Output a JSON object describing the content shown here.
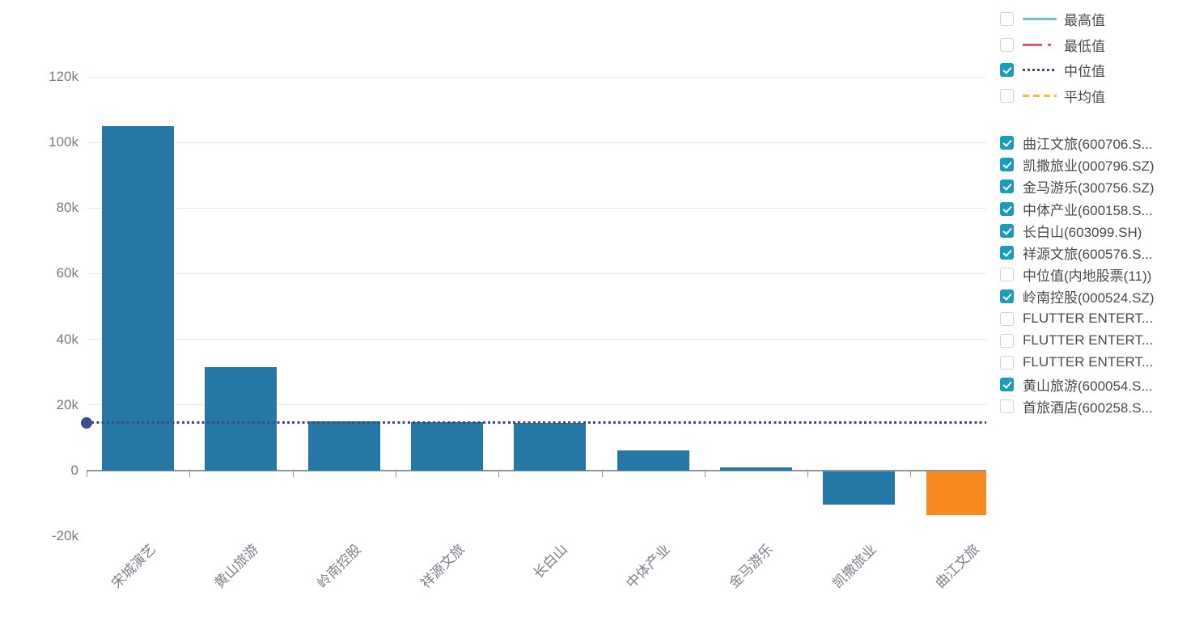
{
  "chart_data": {
    "type": "bar",
    "title": "",
    "xlabel": "",
    "ylabel": "",
    "categories": [
      "宋城演艺",
      "黄山旅游",
      "岭南控股",
      "祥源文旅",
      "长白山",
      "中体产业",
      "金马游乐",
      "凯撒旅业",
      "曲江文旅"
    ],
    "values": [
      105000,
      31500,
      15000,
      14700,
      14600,
      6200,
      1000,
      -10200,
      -13400
    ],
    "bar_colors": [
      "#2577a6",
      "#2577a6",
      "#2577a6",
      "#2577a6",
      "#2577a6",
      "#2577a6",
      "#2577a6",
      "#2577a6",
      "#f68a1f"
    ],
    "ylim": [
      -20000,
      120000
    ],
    "yticks": [
      {
        "value": 120000,
        "label": "120k"
      },
      {
        "value": 100000,
        "label": "100k"
      },
      {
        "value": 80000,
        "label": "80k"
      },
      {
        "value": 60000,
        "label": "60k"
      },
      {
        "value": 40000,
        "label": "40k"
      },
      {
        "value": 20000,
        "label": "20k"
      },
      {
        "value": 0,
        "label": "0"
      },
      {
        "value": -20000,
        "label": "-20k"
      }
    ],
    "grid": true,
    "legend_position": "right",
    "median_line": {
      "value": 14600,
      "color": "#3b4a8f",
      "style": "dotted"
    }
  },
  "legend": {
    "stat_lines": [
      {
        "label": "最高值",
        "checked": false,
        "line_style": "solid",
        "color": "#67c6c0"
      },
      {
        "label": "最低值",
        "checked": false,
        "line_style": "dash-dot",
        "color": "#e2605b"
      },
      {
        "label": "中位值",
        "checked": true,
        "line_style": "dotted",
        "color": "#3b4a8f"
      },
      {
        "label": "平均值",
        "checked": false,
        "line_style": "dashed",
        "color": "#eec43b"
      }
    ],
    "series_items": [
      {
        "label": "曲江文旅(600706.S...",
        "checked": true
      },
      {
        "label": "凯撒旅业(000796.SZ)",
        "checked": true
      },
      {
        "label": "金马游乐(300756.SZ)",
        "checked": true
      },
      {
        "label": "中体产业(600158.S...",
        "checked": true
      },
      {
        "label": "长白山(603099.SH)",
        "checked": true
      },
      {
        "label": "祥源文旅(600576.S...",
        "checked": true
      },
      {
        "label": "中位值(内地股票(11))",
        "checked": false
      },
      {
        "label": "岭南控股(000524.SZ)",
        "checked": true
      },
      {
        "label": "FLUTTER ENTERT...",
        "checked": false
      },
      {
        "label": "FLUTTER ENTERT...",
        "checked": false
      },
      {
        "label": "FLUTTER ENTERT...",
        "checked": false
      },
      {
        "label": "黄山旅游(600054.S...",
        "checked": true
      },
      {
        "label": "首旅酒店(600258.S...",
        "checked": false
      }
    ]
  },
  "colors": {
    "bar_default": "#2577a6",
    "bar_highlight": "#f68a1f",
    "checkbox_checked": "#1a9cba",
    "axis": "#8f969e",
    "gridline": "#e5ebf2",
    "y_label": "#757c87",
    "x_label": "#7c828c",
    "legend_text": "#4b4b50",
    "median": "#3b4a8f"
  }
}
